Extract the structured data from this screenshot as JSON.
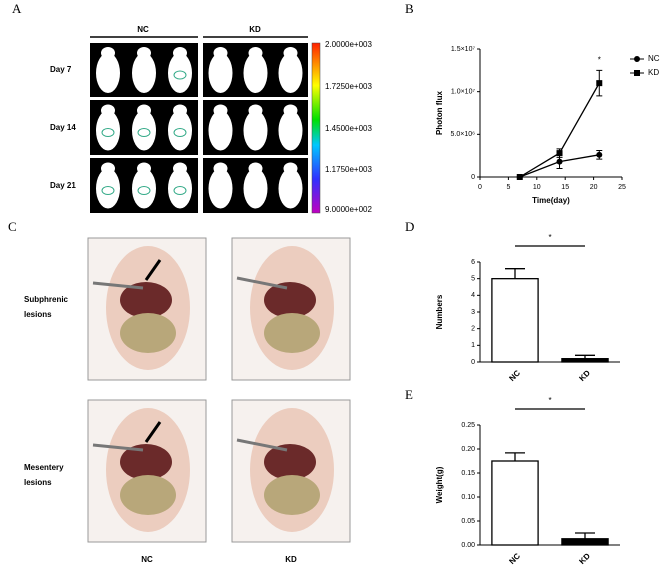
{
  "panel_labels": [
    "A",
    "B",
    "C",
    "D",
    "E"
  ],
  "panel_a": {
    "columns": [
      "NC",
      "KD"
    ],
    "rows": [
      "Day 7",
      "Day 14",
      "Day 21"
    ],
    "colorbar_labels": [
      "2.0000e+003",
      "1.7250e+003",
      "1.4500e+003",
      "1.1750e+003",
      "9.0000e+002"
    ]
  },
  "panel_c": {
    "row_labels": [
      [
        "Subphrenic",
        "lesions"
      ],
      [
        "Mesentery",
        "lesions"
      ]
    ],
    "columns": [
      "NC",
      "KD"
    ]
  },
  "chart_data": [
    {
      "type": "line",
      "xlabel": "Time(day)",
      "ylabel": "Photon flux",
      "annotation": "*",
      "legend": "right",
      "x": [
        7,
        14,
        21
      ],
      "series": [
        {
          "name": "NC",
          "color": "#000000",
          "marker": "circle",
          "values": [
            0,
            1800000,
            2600000
          ],
          "errors": [
            0,
            800000,
            500000
          ]
        },
        {
          "name": "KD",
          "color": "#000000",
          "marker": "square",
          "values": [
            0,
            2800000,
            11000000
          ],
          "errors": [
            0,
            500000,
            1500000
          ]
        }
      ],
      "xlim": [
        0,
        25
      ],
      "xticks": [
        0,
        5,
        10,
        15,
        20,
        25
      ],
      "ylim": [
        0,
        15000000
      ],
      "yticks": [
        0,
        {
          "value": 5000000,
          "label": "5.0×10⁶"
        },
        {
          "value": 10000000,
          "label": "1.0×10⁷"
        },
        {
          "value": 15000000,
          "label": "1.5×10⁷"
        }
      ]
    },
    {
      "type": "bar",
      "ylabel": "Numbers",
      "significance": "*",
      "categories": [
        "NC",
        "KD"
      ],
      "values": [
        5,
        0.2
      ],
      "errors": [
        0.6,
        0.2
      ],
      "colors": [
        "#ffffff",
        "#000000"
      ],
      "ylim": [
        0,
        6
      ],
      "yticks": [
        0,
        1,
        2,
        3,
        4,
        5,
        6
      ]
    },
    {
      "type": "bar",
      "ylabel": "Weight(g)",
      "significance": "*",
      "categories": [
        "NC",
        "KD"
      ],
      "values": [
        0.175,
        0.013
      ],
      "errors": [
        0.017,
        0.012
      ],
      "colors": [
        "#ffffff",
        "#000000"
      ],
      "ylim": [
        0,
        0.25
      ],
      "yticks": [
        {
          "value": 0,
          "label": "0.00"
        },
        {
          "value": 0.05,
          "label": "0.05"
        },
        {
          "value": 0.1,
          "label": "0.10"
        },
        {
          "value": 0.15,
          "label": "0.15"
        },
        {
          "value": 0.2,
          "label": "0.20"
        },
        {
          "value": 0.25,
          "label": "0.25"
        }
      ]
    }
  ]
}
